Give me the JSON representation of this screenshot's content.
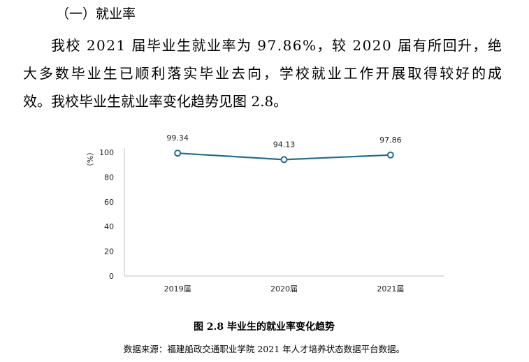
{
  "section_title": "（一）就业率",
  "paragraph_lines": [
    "我校 2021 届毕业生就业率为 97.86%，较 2020 届有所回升，绝",
    "大多数毕业生已顺利落实毕业去向，学校就业工作开展取得较好的成",
    "效。我校毕业生就业率变化趋势见图 2.8。"
  ],
  "chart_data": {
    "type": "line",
    "y_label": "（%）",
    "categories": [
      "2019届",
      "2020届",
      "2021届"
    ],
    "series": [
      {
        "name": "就业率",
        "color": "#1f6e8c",
        "values": [
          99.34,
          94.13,
          97.86
        ]
      }
    ],
    "ylim": [
      0,
      100
    ],
    "yticks": [
      0,
      20,
      40,
      60,
      80,
      100
    ],
    "grid": false
  },
  "caption": "图 2.8  毕业生的就业率变化趋势",
  "source": "数据来源：福建船政交通职业学院 2021 年人才培养状态数据平台数据。"
}
